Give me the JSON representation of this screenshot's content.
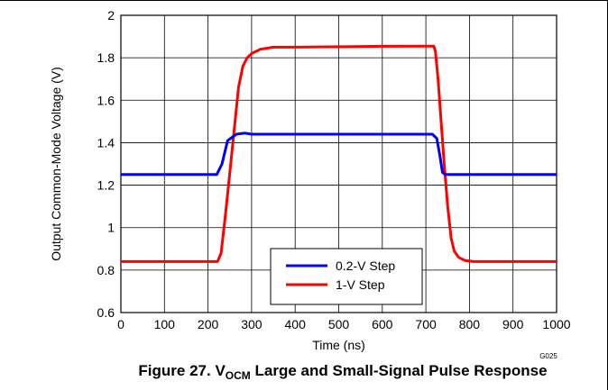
{
  "chart_data": {
    "type": "line",
    "xlabel": "Time (ns)",
    "ylabel": "Output Common-Mode Voltage (V)",
    "xlim": [
      0,
      1000
    ],
    "ylim": [
      0.6,
      2.0
    ],
    "x_ticks": [
      "0",
      "100",
      "200",
      "300",
      "400",
      "500",
      "600",
      "700",
      "800",
      "900",
      "1000"
    ],
    "y_ticks": [
      "0.6",
      "0.8",
      "1",
      "1.2",
      "1.4",
      "1.6",
      "1.8",
      "2"
    ],
    "grid": true,
    "legend_position": "bottom-center",
    "series": [
      {
        "name": "0.2-V Step",
        "color": "#0000ff",
        "x": [
          0,
          220,
          232,
          245,
          265,
          285,
          300,
          500,
          715,
          725,
          732,
          738,
          745,
          760,
          1000
        ],
        "y": [
          1.25,
          1.25,
          1.3,
          1.41,
          1.44,
          1.445,
          1.44,
          1.44,
          1.44,
          1.42,
          1.34,
          1.26,
          1.25,
          1.25,
          1.25
        ]
      },
      {
        "name": "1-V Step",
        "color": "#ff0000",
        "x": [
          0,
          222,
          230,
          240,
          250,
          260,
          270,
          280,
          290,
          300,
          320,
          350,
          400,
          500,
          600,
          700,
          718,
          722,
          728,
          735,
          742,
          750,
          758,
          765,
          775,
          790,
          810,
          1000
        ],
        "y": [
          0.84,
          0.84,
          0.88,
          1.06,
          1.26,
          1.46,
          1.66,
          1.76,
          1.8,
          1.82,
          1.84,
          1.85,
          1.85,
          1.852,
          1.854,
          1.855,
          1.855,
          1.83,
          1.7,
          1.5,
          1.3,
          1.1,
          0.95,
          0.89,
          0.86,
          0.845,
          0.84,
          0.84
        ]
      }
    ],
    "annotation": "G025"
  },
  "caption": {
    "prefix": "Figure 27. V",
    "subscript": "OCM",
    "suffix": " Large and Small-Signal Pulse Response"
  }
}
